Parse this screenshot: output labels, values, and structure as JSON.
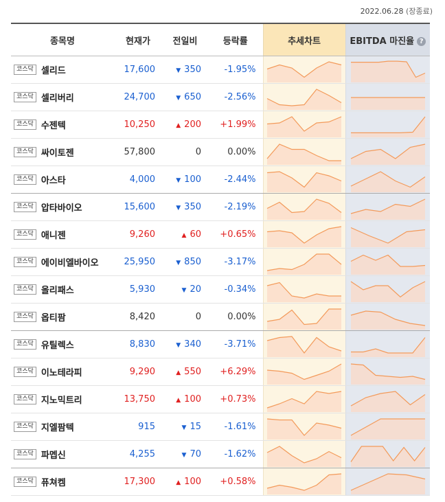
{
  "date": "2022.06.28",
  "date_note": "(장종료)",
  "headers": {
    "name": "종목명",
    "price": "현재가",
    "change": "전일비",
    "rate": "등락률",
    "trend": "추세차트",
    "ebitda": "EBITDA 마진율",
    "help_icon": "?"
  },
  "colors": {
    "up": "#e02020",
    "down": "#1a5fd0",
    "line": "#f39a5a",
    "fill": "#fbd9c7"
  },
  "rows": [
    {
      "market": "코스닥",
      "name": "셀리드",
      "price": "17,600",
      "dir": "down",
      "change": "350",
      "rate": "-1.95%",
      "trend": [
        0.55,
        0.75,
        0.6,
        0.15,
        0.6,
        0.9,
        0.75
      ],
      "ebitda": [
        0.88,
        0.88,
        0.88,
        0.88,
        0.93,
        0.93,
        0.9,
        0.15,
        0.35
      ]
    },
    {
      "market": "코스닥",
      "name": "셀리버리",
      "price": "24,700",
      "dir": "down",
      "change": "650",
      "rate": "-2.56%",
      "trend": [
        0.45,
        0.15,
        0.1,
        0.15,
        0.9,
        0.6,
        0.25
      ],
      "ebitda": [
        0.5,
        0.5,
        0.5,
        0.5,
        0.5,
        0.5,
        0.5
      ]
    },
    {
      "market": "코스닥",
      "name": "수젠텍",
      "price": "10,250",
      "dir": "up",
      "change": "200",
      "rate": "+1.99%",
      "trend": [
        0.55,
        0.6,
        0.9,
        0.2,
        0.6,
        0.65,
        0.9
      ],
      "ebitda": [
        0.12,
        0.12,
        0.12,
        0.12,
        0.12,
        0.15,
        0.9
      ]
    },
    {
      "market": "코스닥",
      "name": "싸이토젠",
      "price": "57,800",
      "dir": "flat",
      "change": "0",
      "rate": "0.00%",
      "trend": [
        0.2,
        0.9,
        0.65,
        0.65,
        0.35,
        0.1,
        0.1
      ],
      "ebitda": [
        0.2,
        0.55,
        0.65,
        0.2,
        0.75,
        0.9
      ]
    },
    {
      "market": "코스닥",
      "name": "아스타",
      "price": "4,000",
      "dir": "down",
      "change": "100",
      "rate": "-2.44%",
      "trend": [
        0.85,
        0.9,
        0.6,
        0.15,
        0.85,
        0.7,
        0.45
      ],
      "ebitda": [
        0.2,
        0.55,
        0.9,
        0.45,
        0.15,
        0.65
      ]
    },
    {
      "market": "코스닥",
      "name": "압타바이오",
      "price": "15,600",
      "dir": "down",
      "change": "350",
      "rate": "-2.19%",
      "trend": [
        0.45,
        0.75,
        0.25,
        0.3,
        0.9,
        0.7,
        0.25
      ],
      "ebitda": [
        0.2,
        0.4,
        0.3,
        0.65,
        0.55,
        0.9
      ]
    },
    {
      "market": "코스닥",
      "name": "애니젠",
      "price": "9,260",
      "dir": "up",
      "change": "60",
      "rate": "+0.65%",
      "trend": [
        0.65,
        0.7,
        0.6,
        0.1,
        0.5,
        0.8,
        0.9
      ],
      "ebitda": [
        0.85,
        0.45,
        0.1,
        0.65,
        0.75
      ]
    },
    {
      "market": "코스닥",
      "name": "에이비엘바이오",
      "price": "25,950",
      "dir": "down",
      "change": "850",
      "rate": "-3.17%",
      "trend": [
        0.1,
        0.2,
        0.15,
        0.4,
        0.9,
        0.9,
        0.4
      ],
      "ebitda": [
        0.55,
        0.85,
        0.6,
        0.85,
        0.3,
        0.3,
        0.35
      ]
    },
    {
      "market": "코스닥",
      "name": "올리패스",
      "price": "5,930",
      "dir": "down",
      "change": "20",
      "rate": "-0.34%",
      "trend": [
        0.7,
        0.85,
        0.2,
        0.1,
        0.3,
        0.2,
        0.2
      ],
      "ebitda": [
        0.9,
        0.5,
        0.7,
        0.7,
        0.15,
        0.6,
        0.9
      ]
    },
    {
      "market": "코스닥",
      "name": "옵티팜",
      "price": "8,420",
      "dir": "flat",
      "change": "0",
      "rate": "0.00%",
      "trend": [
        0.3,
        0.4,
        0.85,
        0.15,
        0.2,
        0.9,
        0.9
      ],
      "ebitda": [
        0.6,
        0.8,
        0.75,
        0.4,
        0.2,
        0.1
      ]
    },
    {
      "market": "코스닥",
      "name": "유틸렉스",
      "price": "8,830",
      "dir": "down",
      "change": "340",
      "rate": "-3.71%",
      "trend": [
        0.7,
        0.85,
        0.9,
        0.1,
        0.85,
        0.4,
        0.2
      ],
      "ebitda": [
        0.15,
        0.15,
        0.3,
        0.1,
        0.1,
        0.1,
        0.85
      ]
    },
    {
      "market": "코스닥",
      "name": "이노테라피",
      "price": "9,290",
      "dir": "up",
      "change": "550",
      "rate": "+6.29%",
      "trend": [
        0.6,
        0.55,
        0.45,
        0.15,
        0.35,
        0.55,
        0.9
      ],
      "ebitda": [
        0.9,
        0.85,
        0.35,
        0.3,
        0.25,
        0.3,
        0.15
      ]
    },
    {
      "market": "코스닥",
      "name": "지노믹트리",
      "price": "13,750",
      "dir": "up",
      "change": "100",
      "rate": "+0.73%",
      "trend": [
        0.1,
        0.3,
        0.55,
        0.3,
        0.9,
        0.8,
        0.9
      ],
      "ebitda": [
        0.2,
        0.6,
        0.8,
        0.9,
        0.25,
        0.75
      ]
    },
    {
      "market": "코스닥",
      "name": "지엘팜텍",
      "price": "915",
      "dir": "down",
      "change": "15",
      "rate": "-1.61%",
      "trend": [
        0.9,
        0.85,
        0.85,
        0.1,
        0.7,
        0.6,
        0.45
      ],
      "ebitda": [
        0.1,
        0.5,
        0.9,
        0.9,
        0.9,
        0.9
      ]
    },
    {
      "market": "코스닥",
      "name": "파멥신",
      "price": "4,255",
      "dir": "down",
      "change": "70",
      "rate": "-1.62%",
      "trend": [
        0.6,
        0.9,
        0.45,
        0.1,
        0.3,
        0.65,
        0.35
      ],
      "ebitda": [
        0.15,
        0.9,
        0.9,
        0.9,
        0.2,
        0.85,
        0.2,
        0.85
      ]
    },
    {
      "market": "코스닥",
      "name": "퓨쳐켐",
      "price": "17,300",
      "dir": "up",
      "change": "100",
      "rate": "+0.58%",
      "trend": [
        0.2,
        0.35,
        0.25,
        0.1,
        0.35,
        0.85,
        0.9
      ],
      "ebitda": [
        0.1,
        0.5,
        0.9,
        0.85,
        0.65
      ]
    }
  ]
}
